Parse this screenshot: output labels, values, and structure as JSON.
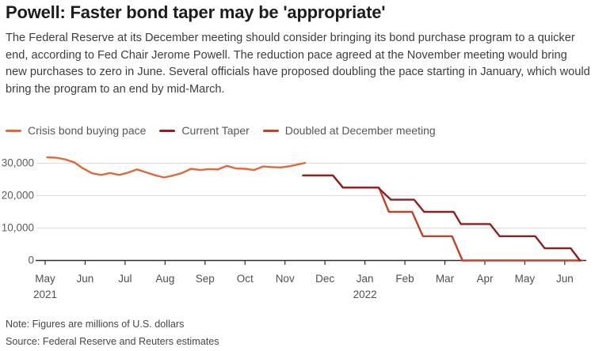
{
  "header": {
    "title": "Powell: Faster bond taper may be 'appropriate'",
    "description": "The Federal Reserve at its December meeting should consider bringing its bond purchase program to a quicker end, according to Fed Chair Jerome Powell. The reduction pace agreed at the November meeting would bring new purchases to zero in June. Several officials have proposed doubling the pace starting in January, which would bring the program to an end by mid-March."
  },
  "footer": {
    "note": "Note: Figures are millions of U.S. dollars",
    "source": "Source: Federal Reserve and Reuters estimates"
  },
  "colors": {
    "crisis_orange": "#e0693c",
    "current_taper_dark_red": "#8e211f",
    "doubled_red": "#c3402b",
    "gridline": "#dbdbdb",
    "axis": "#2e2e2e"
  },
  "chart_data": {
    "type": "line",
    "title": "Powell: Faster bond taper may be 'appropriate'",
    "unit_note": "millions of U.S. dollars",
    "legend_position": "top",
    "grid": "horizontal",
    "y_axis": {
      "ticks": [
        0,
        10000,
        20000,
        30000
      ],
      "max": 30000,
      "min": 0
    },
    "x_axis": {
      "unit": "months (x in months after May 2021 tick)",
      "months": [
        {
          "label": "May",
          "year": "2021"
        },
        {
          "label": "Jun"
        },
        {
          "label": "Jul"
        },
        {
          "label": "Aug"
        },
        {
          "label": "Sep"
        },
        {
          "label": "Oct"
        },
        {
          "label": "Nov"
        },
        {
          "label": "Dec"
        },
        {
          "label": "Jan",
          "year": "2022"
        },
        {
          "label": "Feb"
        },
        {
          "label": "Mar"
        },
        {
          "label": "Apr"
        },
        {
          "label": "May"
        },
        {
          "label": "Jun"
        }
      ]
    },
    "series": [
      {
        "name": "Crisis bond buying pace",
        "color": "#e0693c",
        "points": [
          [
            0.05,
            31800
          ],
          [
            0.275,
            31700
          ],
          [
            0.5,
            31200
          ],
          [
            0.725,
            30300
          ],
          [
            0.95,
            28400
          ],
          [
            1.175,
            26900
          ],
          [
            1.4,
            26400
          ],
          [
            1.625,
            27000
          ],
          [
            1.85,
            26400
          ],
          [
            2.075,
            27100
          ],
          [
            2.3,
            28100
          ],
          [
            2.525,
            27200
          ],
          [
            2.75,
            26300
          ],
          [
            2.975,
            25600
          ],
          [
            3.2,
            26200
          ],
          [
            3.425,
            27000
          ],
          [
            3.65,
            28300
          ],
          [
            3.875,
            27900
          ],
          [
            4.1,
            28200
          ],
          [
            4.325,
            28100
          ],
          [
            4.55,
            29200
          ],
          [
            4.775,
            28400
          ],
          [
            5.0,
            28300
          ],
          [
            5.225,
            27900
          ],
          [
            5.45,
            29000
          ],
          [
            5.675,
            28800
          ],
          [
            5.9,
            28700
          ],
          [
            6.125,
            29100
          ],
          [
            6.35,
            29700
          ],
          [
            6.5,
            30100
          ]
        ]
      },
      {
        "name": "Current Taper",
        "color": "#8e211f",
        "points": [
          [
            6.45,
            26250
          ],
          [
            7.2,
            26250
          ],
          [
            7.45,
            22500
          ],
          [
            8.33,
            22500
          ],
          [
            8.65,
            18750
          ],
          [
            9.23,
            18750
          ],
          [
            9.48,
            15000
          ],
          [
            10.22,
            15000
          ],
          [
            10.4,
            11250
          ],
          [
            11.13,
            11250
          ],
          [
            11.37,
            7500
          ],
          [
            12.26,
            7500
          ],
          [
            12.5,
            3750
          ],
          [
            13.15,
            3750
          ],
          [
            13.38,
            0
          ]
        ]
      },
      {
        "name": "Doubled at December meeting",
        "color": "#c3402b",
        "points": [
          [
            6.45,
            26250
          ],
          [
            7.2,
            26250
          ],
          [
            7.45,
            22500
          ],
          [
            8.35,
            22500
          ],
          [
            8.6,
            15000
          ],
          [
            9.18,
            15000
          ],
          [
            9.45,
            7500
          ],
          [
            10.18,
            7500
          ],
          [
            10.44,
            0
          ],
          [
            13.42,
            0
          ]
        ]
      }
    ]
  }
}
